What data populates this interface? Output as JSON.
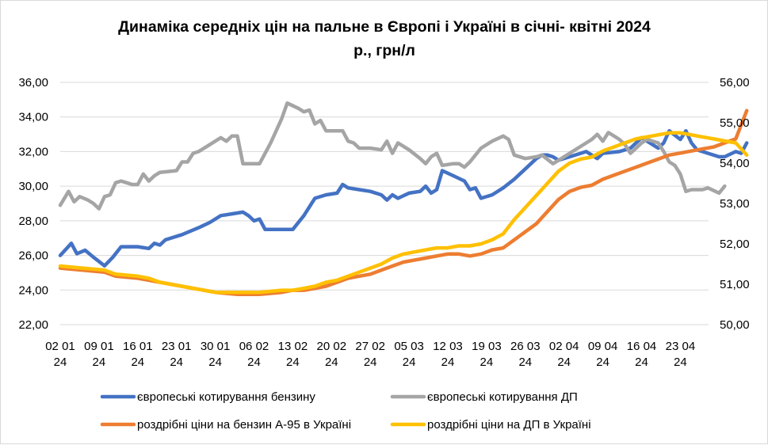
{
  "chart_data": {
    "type": "line",
    "title_lines": [
      "Динаміка середніх цін на пальне в Європі  і Україні в січні- квітні 2024",
      "р., грн/л"
    ],
    "y_left": {
      "min": 22,
      "max": 36,
      "step": 2,
      "ticks": [
        "22,00",
        "24,00",
        "26,00",
        "28,00",
        "30,00",
        "32,00",
        "34,00",
        "36,00"
      ]
    },
    "y_right": {
      "min": 50,
      "max": 56,
      "step": 1,
      "ticks": [
        "50,00",
        "51,00",
        "52,00",
        "53,00",
        "54,00",
        "55,00",
        "56,00"
      ]
    },
    "x_ticks": [
      {
        "day": "02",
        "month": "01",
        "year": "24"
      },
      {
        "day": "09",
        "month": "01",
        "year": "24"
      },
      {
        "day": "16",
        "month": "01",
        "year": "24"
      },
      {
        "day": "23",
        "month": "01",
        "year": "24"
      },
      {
        "day": "30",
        "month": "01",
        "year": "24"
      },
      {
        "day": "06",
        "month": "02",
        "year": "24"
      },
      {
        "day": "13",
        "month": "02",
        "year": "24"
      },
      {
        "day": "20",
        "month": "02",
        "year": "24"
      },
      {
        "day": "27",
        "month": "02",
        "year": "24"
      },
      {
        "day": "05",
        "month": "03",
        "year": "24"
      },
      {
        "day": "12",
        "month": "03",
        "year": "24"
      },
      {
        "day": "19",
        "month": "03",
        "year": "24"
      },
      {
        "day": "26",
        "month": "03",
        "year": "24"
      },
      {
        "day": "02",
        "month": "04",
        "year": "24"
      },
      {
        "day": "09",
        "month": "04",
        "year": "24"
      },
      {
        "day": "16",
        "month": "04",
        "year": "24"
      },
      {
        "day": "23",
        "month": "04",
        "year": "24"
      }
    ],
    "x_range_days": [
      0,
      115.5
    ],
    "legend_position": "bottom",
    "series": [
      {
        "name": "європеські котирування бензину",
        "color": "#4472C4",
        "axis": "left",
        "points": [
          [
            0,
            26.0
          ],
          [
            2,
            26.7
          ],
          [
            3,
            26.1
          ],
          [
            4.5,
            26.3
          ],
          [
            6,
            25.9
          ],
          [
            8,
            25.4
          ],
          [
            9.5,
            25.9
          ],
          [
            11,
            26.5
          ],
          [
            14,
            26.5
          ],
          [
            16,
            26.4
          ],
          [
            17,
            26.7
          ],
          [
            18,
            26.6
          ],
          [
            19,
            26.9
          ],
          [
            22,
            27.2
          ],
          [
            25,
            27.6
          ],
          [
            27,
            27.9
          ],
          [
            29,
            28.3
          ],
          [
            31,
            28.4
          ],
          [
            33,
            28.5
          ],
          [
            34,
            28.3
          ],
          [
            35,
            28.0
          ],
          [
            36,
            28.1
          ],
          [
            37,
            27.5
          ],
          [
            42,
            27.5
          ],
          [
            44,
            28.3
          ],
          [
            46,
            29.3
          ],
          [
            48,
            29.5
          ],
          [
            50,
            29.6
          ],
          [
            51,
            30.1
          ],
          [
            52,
            29.9
          ],
          [
            54,
            29.8
          ],
          [
            56,
            29.7
          ],
          [
            58,
            29.5
          ],
          [
            59,
            29.2
          ],
          [
            60,
            29.5
          ],
          [
            61,
            29.3
          ],
          [
            63,
            29.6
          ],
          [
            65,
            29.7
          ],
          [
            66,
            30.0
          ],
          [
            67,
            29.6
          ],
          [
            68,
            29.8
          ],
          [
            69,
            30.9
          ],
          [
            71,
            30.6
          ],
          [
            73,
            30.3
          ],
          [
            74,
            29.8
          ],
          [
            75,
            29.9
          ],
          [
            76,
            29.3
          ],
          [
            78,
            29.5
          ],
          [
            80,
            29.9
          ],
          [
            82,
            30.4
          ],
          [
            84,
            31.0
          ],
          [
            86,
            31.6
          ],
          [
            87,
            31.8
          ],
          [
            88,
            31.8
          ],
          [
            89,
            31.7
          ],
          [
            90,
            31.5
          ],
          [
            92,
            31.7
          ],
          [
            94,
            31.9
          ],
          [
            95,
            32.0
          ],
          [
            96,
            31.8
          ],
          [
            97,
            31.6
          ],
          [
            98,
            31.9
          ],
          [
            101,
            32.0
          ],
          [
            103,
            32.2
          ],
          [
            104,
            32.5
          ],
          [
            105,
            32.8
          ],
          [
            106,
            32.6
          ],
          [
            108,
            32.2
          ],
          [
            109,
            32.5
          ],
          [
            110,
            33.2
          ],
          [
            112,
            32.7
          ],
          [
            113,
            33.2
          ],
          [
            114,
            32.5
          ],
          [
            115,
            32.1
          ],
          [
            117,
            31.9
          ],
          [
            119,
            31.7
          ],
          [
            120,
            31.7
          ],
          [
            122,
            32.0
          ],
          [
            123,
            31.9
          ],
          [
            124,
            32.5
          ]
        ]
      },
      {
        "name": "європеські котирування ДП",
        "color": "#A5A5A5",
        "axis": "left",
        "points": [
          [
            0,
            28.9
          ],
          [
            1.5,
            29.7
          ],
          [
            2.5,
            29.1
          ],
          [
            3.5,
            29.4
          ],
          [
            5,
            29.2
          ],
          [
            6,
            29.0
          ],
          [
            7,
            28.7
          ],
          [
            8,
            29.4
          ],
          [
            9,
            29.5
          ],
          [
            10,
            30.2
          ],
          [
            11,
            30.3
          ],
          [
            12,
            30.2
          ],
          [
            13,
            30.1
          ],
          [
            14,
            30.1
          ],
          [
            15,
            30.7
          ],
          [
            16,
            30.3
          ],
          [
            17,
            30.6
          ],
          [
            18,
            30.8
          ],
          [
            21,
            30.9
          ],
          [
            22,
            31.4
          ],
          [
            23,
            31.4
          ],
          [
            24,
            31.9
          ],
          [
            25,
            32.0
          ],
          [
            27,
            32.4
          ],
          [
            29,
            32.8
          ],
          [
            30,
            32.6
          ],
          [
            31,
            32.9
          ],
          [
            32,
            32.9
          ],
          [
            33,
            31.3
          ],
          [
            36,
            31.3
          ],
          [
            38,
            32.5
          ],
          [
            40,
            33.9
          ],
          [
            41,
            34.8
          ],
          [
            43,
            34.5
          ],
          [
            44,
            34.3
          ],
          [
            45,
            34.4
          ],
          [
            46,
            33.6
          ],
          [
            47,
            33.8
          ],
          [
            48,
            33.2
          ],
          [
            51,
            33.2
          ],
          [
            52,
            32.6
          ],
          [
            53,
            32.5
          ],
          [
            54,
            32.2
          ],
          [
            56,
            32.2
          ],
          [
            58,
            32.1
          ],
          [
            59,
            32.6
          ],
          [
            60,
            31.9
          ],
          [
            61,
            32.5
          ],
          [
            63,
            32.1
          ],
          [
            65,
            31.6
          ],
          [
            66,
            31.3
          ],
          [
            67,
            31.7
          ],
          [
            68,
            31.9
          ],
          [
            69,
            31.2
          ],
          [
            71,
            31.3
          ],
          [
            72,
            31.3
          ],
          [
            73,
            31.1
          ],
          [
            74,
            31.4
          ],
          [
            76,
            32.2
          ],
          [
            78,
            32.6
          ],
          [
            80,
            32.9
          ],
          [
            81,
            32.7
          ],
          [
            82,
            31.8
          ],
          [
            84,
            31.6
          ],
          [
            86,
            31.7
          ],
          [
            87,
            31.8
          ],
          [
            89,
            31.3
          ],
          [
            90,
            31.5
          ],
          [
            92,
            31.9
          ],
          [
            94,
            32.3
          ],
          [
            96,
            32.7
          ],
          [
            97,
            33.0
          ],
          [
            98,
            32.6
          ],
          [
            99,
            33.1
          ],
          [
            101,
            32.7
          ],
          [
            102,
            32.4
          ],
          [
            103,
            31.9
          ],
          [
            104,
            32.2
          ],
          [
            105,
            32.5
          ],
          [
            106,
            32.7
          ],
          [
            108,
            32.5
          ],
          [
            109,
            32.0
          ],
          [
            110,
            31.4
          ],
          [
            111,
            31.2
          ],
          [
            112,
            30.7
          ],
          [
            113,
            29.7
          ],
          [
            114,
            29.8
          ],
          [
            116,
            29.8
          ],
          [
            117,
            29.9
          ],
          [
            119,
            29.6
          ],
          [
            120,
            30.0
          ]
        ]
      },
      {
        "name": "роздрібні ціни на бензин А-95 в Україні",
        "color": "#ED7D31",
        "axis": "right",
        "points": [
          [
            0,
            51.4
          ],
          [
            4,
            51.35
          ],
          [
            8,
            51.3
          ],
          [
            10,
            51.2
          ],
          [
            14,
            51.15
          ],
          [
            16,
            51.1
          ],
          [
            18,
            51.05
          ],
          [
            20,
            51.0
          ],
          [
            24,
            50.9
          ],
          [
            26,
            50.85
          ],
          [
            28,
            50.8
          ],
          [
            32,
            50.75
          ],
          [
            36,
            50.75
          ],
          [
            40,
            50.8
          ],
          [
            42,
            50.85
          ],
          [
            44,
            50.85
          ],
          [
            46,
            50.9
          ],
          [
            48,
            50.95
          ],
          [
            50,
            51.05
          ],
          [
            52,
            51.15
          ],
          [
            54,
            51.2
          ],
          [
            56,
            51.25
          ],
          [
            58,
            51.35
          ],
          [
            60,
            51.45
          ],
          [
            62,
            51.55
          ],
          [
            64,
            51.6
          ],
          [
            66,
            51.65
          ],
          [
            68,
            51.7
          ],
          [
            70,
            51.75
          ],
          [
            72,
            51.75
          ],
          [
            74,
            51.7
          ],
          [
            76,
            51.75
          ],
          [
            78,
            51.85
          ],
          [
            80,
            51.9
          ],
          [
            82,
            52.1
          ],
          [
            84,
            52.3
          ],
          [
            86,
            52.5
          ],
          [
            88,
            52.8
          ],
          [
            90,
            53.1
          ],
          [
            92,
            53.3
          ],
          [
            94,
            53.4
          ],
          [
            96,
            53.45
          ],
          [
            98,
            53.6
          ],
          [
            100,
            53.7
          ],
          [
            102,
            53.8
          ],
          [
            104,
            53.9
          ],
          [
            106,
            54.0
          ],
          [
            108,
            54.1
          ],
          [
            110,
            54.2
          ],
          [
            112,
            54.25
          ],
          [
            114,
            54.3
          ],
          [
            116,
            54.35
          ],
          [
            118,
            54.4
          ],
          [
            120,
            54.5
          ],
          [
            122,
            54.6
          ],
          [
            124,
            55.3
          ]
        ]
      },
      {
        "name": "роздрібні ціни на ДП в Україні",
        "color": "#FFC000",
        "axis": "right",
        "points": [
          [
            0,
            51.45
          ],
          [
            4,
            51.4
          ],
          [
            8,
            51.35
          ],
          [
            10,
            51.25
          ],
          [
            14,
            51.2
          ],
          [
            16,
            51.15
          ],
          [
            18,
            51.05
          ],
          [
            20,
            51.0
          ],
          [
            24,
            50.9
          ],
          [
            26,
            50.85
          ],
          [
            28,
            50.8
          ],
          [
            32,
            50.8
          ],
          [
            36,
            50.8
          ],
          [
            40,
            50.85
          ],
          [
            42,
            50.85
          ],
          [
            44,
            50.9
          ],
          [
            46,
            50.95
          ],
          [
            48,
            51.05
          ],
          [
            50,
            51.1
          ],
          [
            52,
            51.2
          ],
          [
            54,
            51.3
          ],
          [
            56,
            51.4
          ],
          [
            58,
            51.5
          ],
          [
            60,
            51.65
          ],
          [
            62,
            51.75
          ],
          [
            64,
            51.8
          ],
          [
            66,
            51.85
          ],
          [
            68,
            51.9
          ],
          [
            70,
            51.9
          ],
          [
            72,
            51.95
          ],
          [
            74,
            51.95
          ],
          [
            76,
            52.0
          ],
          [
            78,
            52.1
          ],
          [
            80,
            52.25
          ],
          [
            82,
            52.6
          ],
          [
            84,
            52.9
          ],
          [
            86,
            53.2
          ],
          [
            88,
            53.5
          ],
          [
            90,
            53.8
          ],
          [
            92,
            54.0
          ],
          [
            94,
            54.1
          ],
          [
            96,
            54.15
          ],
          [
            98,
            54.3
          ],
          [
            100,
            54.4
          ],
          [
            102,
            54.5
          ],
          [
            104,
            54.6
          ],
          [
            106,
            54.65
          ],
          [
            108,
            54.7
          ],
          [
            110,
            54.75
          ],
          [
            112,
            54.75
          ],
          [
            114,
            54.7
          ],
          [
            116,
            54.65
          ],
          [
            118,
            54.6
          ],
          [
            120,
            54.55
          ],
          [
            122,
            54.5
          ],
          [
            124,
            54.2
          ]
        ]
      }
    ]
  }
}
